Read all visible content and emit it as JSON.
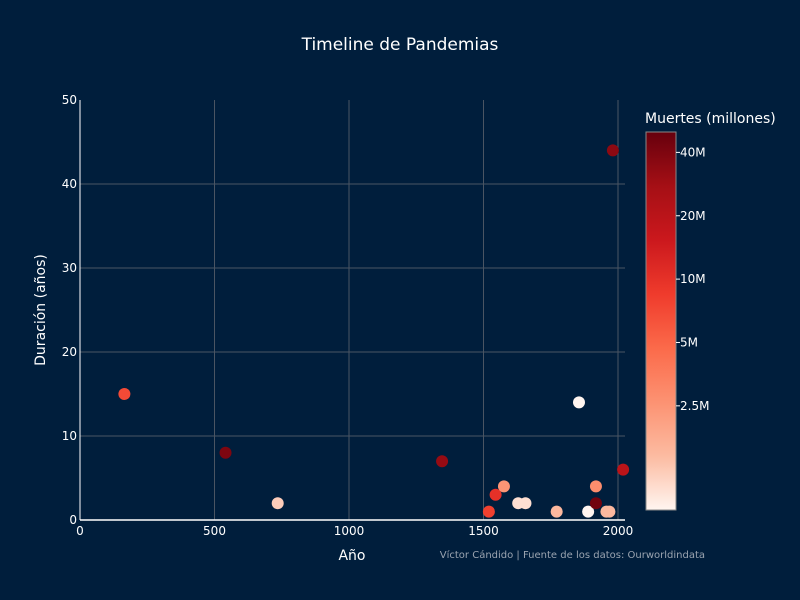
{
  "chart_data": {
    "type": "scatter",
    "title": "Timeline de Pandemias",
    "xlabel": "Año",
    "ylabel": "Duración (años)",
    "xlim": [
      0,
      2000
    ],
    "ylim": [
      0,
      50
    ],
    "x_ticks": [
      0,
      500,
      1000,
      1500,
      2000
    ],
    "y_ticks": [
      0,
      10,
      20,
      30,
      40,
      50
    ],
    "grid": true,
    "colorbar": {
      "title": "Muertes (millones)",
      "ticks": [
        {
          "label": "2.5M",
          "value": 2.5
        },
        {
          "label": "5M",
          "value": 5
        },
        {
          "label": "10M",
          "value": 10
        },
        {
          "label": "20M",
          "value": 20
        },
        {
          "label": "40M",
          "value": 40
        }
      ],
      "scale": "log",
      "range": [
        0.8,
        50
      ],
      "colors": [
        "#fff5f0",
        "#fcbba1",
        "#fc9272",
        "#fb6a4a",
        "#ef3b2c",
        "#cb181d",
        "#a50f15",
        "#67000d"
      ]
    },
    "points": [
      {
        "x": 165,
        "y": 15,
        "deaths": 7
      },
      {
        "x": 541,
        "y": 8,
        "deaths": 40
      },
      {
        "x": 735,
        "y": 2,
        "deaths": 1.2
      },
      {
        "x": 1346,
        "y": 7,
        "deaths": 32
      },
      {
        "x": 1520,
        "y": 1,
        "deaths": 8
      },
      {
        "x": 1545,
        "y": 3,
        "deaths": 10
      },
      {
        "x": 1576,
        "y": 4,
        "deaths": 2.5
      },
      {
        "x": 1629,
        "y": 2,
        "deaths": 1
      },
      {
        "x": 1656,
        "y": 2,
        "deaths": 1
      },
      {
        "x": 1772,
        "y": 1,
        "deaths": 1.5
      },
      {
        "x": 1855,
        "y": 14,
        "deaths": 0.8
      },
      {
        "x": 1889,
        "y": 1,
        "deaths": 0.8
      },
      {
        "x": 1918,
        "y": 2,
        "deaths": 45
      },
      {
        "x": 1918,
        "y": 4,
        "deaths": 2.8
      },
      {
        "x": 1957,
        "y": 1,
        "deaths": 1.5
      },
      {
        "x": 1968,
        "y": 1,
        "deaths": 1.5
      },
      {
        "x": 1981,
        "y": 44,
        "deaths": 35
      },
      {
        "x": 2019,
        "y": 6,
        "deaths": 20
      }
    ]
  },
  "source_note": "Víctor Cándido | Fuente de los datos: Ourworldindata"
}
